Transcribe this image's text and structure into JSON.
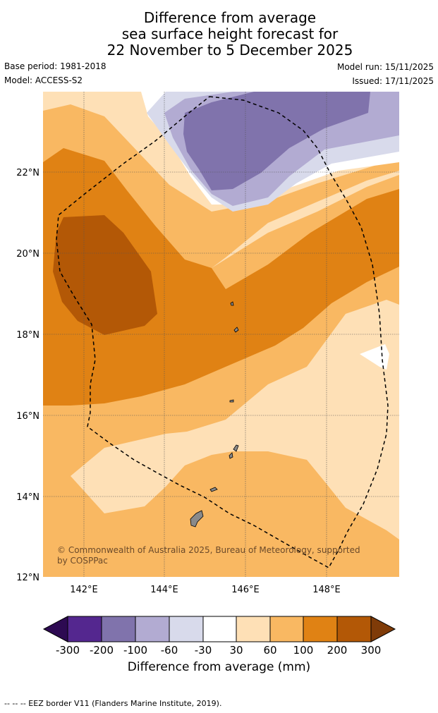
{
  "title": {
    "line1": "Difference from average",
    "line2": "sea surface height forecast for",
    "line3": "22 November to 5 December 2025"
  },
  "meta": {
    "base_period": "Base period: 1981-2018",
    "model": "Model: ACCESS-S2",
    "model_run": "Model run: 15/11/2025",
    "issued": "Issued: 17/11/2025"
  },
  "map": {
    "lat_labels": [
      "22°N",
      "20°N",
      "18°N",
      "16°N",
      "14°N",
      "12°N"
    ],
    "lon_labels": [
      "142°E",
      "144°E",
      "146°E",
      "148°E"
    ],
    "credit_line1": "© Commonwealth of Australia 2025, Bureau of Meteorology, supported",
    "credit_line2": "by COSPPac"
  },
  "legend": {
    "labels": [
      "-300",
      "-200",
      "-100",
      "-60",
      "-30",
      "30",
      "60",
      "100",
      "200",
      "300"
    ],
    "colors": [
      "#2d0a52",
      "#54278f",
      "#8073ac",
      "#b2abd2",
      "#d8daeb",
      "#ffffff",
      "#fee0b6",
      "#f9b862",
      "#e08214",
      "#b35806",
      "#7f3b08"
    ],
    "title": "Difference from average (mm)"
  },
  "footnote": "--  --  -- EEZ border V11 (Flanders Marine Institute, 2019)."
}
